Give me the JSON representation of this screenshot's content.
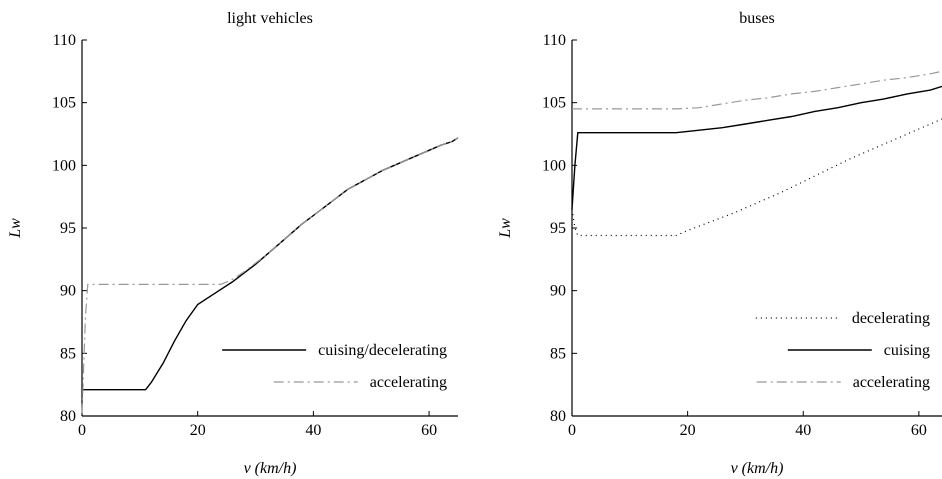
{
  "chart_data": [
    {
      "type": "line",
      "title": "light vehicles",
      "xlabel": "v (km/h)",
      "ylabel": "Lw",
      "xlim": [
        0,
        65
      ],
      "ylim": [
        80,
        110
      ],
      "xticks": [
        "0",
        "20",
        "40",
        "60"
      ],
      "yticks": [
        "80",
        "85",
        "90",
        "95",
        "100",
        "105",
        "110"
      ],
      "grid": false,
      "legend_position": "bottom-right",
      "series": [
        {
          "name": "cuising/decelerating",
          "style": "solid",
          "color": "#000000",
          "points": [
            [
              0,
              82.1
            ],
            [
              11,
              82.1
            ],
            [
              12,
              82.7
            ],
            [
              14,
              84.2
            ],
            [
              16,
              86.0
            ],
            [
              18,
              87.6
            ],
            [
              20,
              88.9
            ],
            [
              22,
              89.5
            ],
            [
              24,
              90.1
            ],
            [
              26,
              90.7
            ],
            [
              28,
              91.4
            ],
            [
              30,
              92.1
            ],
            [
              32,
              92.9
            ],
            [
              34,
              93.7
            ],
            [
              36,
              94.5
            ],
            [
              38,
              95.3
            ],
            [
              40,
              96.0
            ],
            [
              42,
              96.7
            ],
            [
              44,
              97.4
            ],
            [
              46,
              98.1
            ],
            [
              48,
              98.6
            ],
            [
              50,
              99.1
            ],
            [
              52,
              99.6
            ],
            [
              54,
              100.0
            ],
            [
              56,
              100.4
            ],
            [
              58,
              100.8
            ],
            [
              60,
              101.2
            ],
            [
              62,
              101.6
            ],
            [
              64,
              101.9
            ],
            [
              65,
              102.2
            ]
          ]
        },
        {
          "name": "accelerating",
          "style": "dashdot",
          "color": "#999999",
          "points": [
            [
              0,
              80.2
            ],
            [
              0.3,
              84
            ],
            [
              0.6,
              88
            ],
            [
              1,
              90.5
            ],
            [
              24,
              90.5
            ],
            [
              26,
              90.9
            ],
            [
              28,
              91.5
            ],
            [
              30,
              92.2
            ],
            [
              32,
              92.9
            ],
            [
              34,
              93.7
            ],
            [
              36,
              94.5
            ],
            [
              38,
              95.3
            ],
            [
              40,
              96.0
            ],
            [
              42,
              96.7
            ],
            [
              44,
              97.4
            ],
            [
              46,
              98.1
            ],
            [
              48,
              98.6
            ],
            [
              50,
              99.1
            ],
            [
              52,
              99.6
            ],
            [
              54,
              100.0
            ],
            [
              56,
              100.4
            ],
            [
              58,
              100.8
            ],
            [
              60,
              101.2
            ],
            [
              62,
              101.6
            ],
            [
              64,
              101.9
            ],
            [
              65,
              102.2
            ]
          ]
        }
      ]
    },
    {
      "type": "line",
      "title": "buses",
      "xlabel": "v (km/h)",
      "ylabel": "Lw",
      "xlim": [
        0,
        64
      ],
      "ylim": [
        80,
        110
      ],
      "xticks": [
        "0",
        "20",
        "40",
        "60"
      ],
      "yticks": [
        "80",
        "85",
        "90",
        "95",
        "100",
        "105",
        "110"
      ],
      "grid": false,
      "legend_position": "bottom-right",
      "series": [
        {
          "name": "decelerating",
          "style": "dotted",
          "color": "#000000",
          "points": [
            [
              0,
              96.5
            ],
            [
              0.5,
              95.0
            ],
            [
              1,
              94.4
            ],
            [
              18,
              94.4
            ],
            [
              20,
              94.8
            ],
            [
              24,
              95.5
            ],
            [
              28,
              96.2
            ],
            [
              32,
              97.0
            ],
            [
              36,
              97.8
            ],
            [
              40,
              98.7
            ],
            [
              44,
              99.6
            ],
            [
              48,
              100.5
            ],
            [
              52,
              101.3
            ],
            [
              56,
              102.1
            ],
            [
              60,
              102.9
            ],
            [
              64,
              103.7
            ]
          ]
        },
        {
          "name": "cuising",
          "style": "solid",
          "color": "#000000",
          "points": [
            [
              0,
              96.5
            ],
            [
              0.5,
              100
            ],
            [
              1,
              102.6
            ],
            [
              18,
              102.6
            ],
            [
              22,
              102.8
            ],
            [
              26,
              103.0
            ],
            [
              30,
              103.3
            ],
            [
              34,
              103.6
            ],
            [
              38,
              103.9
            ],
            [
              42,
              104.3
            ],
            [
              46,
              104.6
            ],
            [
              50,
              105.0
            ],
            [
              54,
              105.3
            ],
            [
              58,
              105.7
            ],
            [
              62,
              106.0
            ],
            [
              64,
              106.3
            ]
          ]
        },
        {
          "name": "accelerating",
          "style": "dashdot",
          "color": "#999999",
          "points": [
            [
              0,
              104.5
            ],
            [
              18,
              104.5
            ],
            [
              22,
              104.6
            ],
            [
              26,
              104.9
            ],
            [
              30,
              105.2
            ],
            [
              34,
              105.4
            ],
            [
              38,
              105.7
            ],
            [
              42,
              105.9
            ],
            [
              46,
              106.2
            ],
            [
              50,
              106.5
            ],
            [
              54,
              106.8
            ],
            [
              58,
              107.0
            ],
            [
              62,
              107.3
            ],
            [
              64,
              107.5
            ]
          ]
        }
      ]
    }
  ]
}
